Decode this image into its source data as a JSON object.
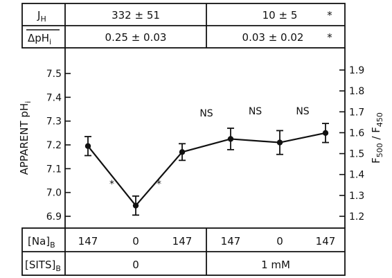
{
  "top_table": {
    "row1": {
      "label": "J_H",
      "label_main": "J",
      "label_sub": "H",
      "ctrl": "332 ± 51",
      "sits": "10 ± 5",
      "sig": "*"
    },
    "row2": {
      "label": "ΔpH_i",
      "label_main": "ΔpH",
      "label_sub": "i",
      "ctrl": "0.25 ± 0.03",
      "sits": "0.03 ± 0.02",
      "sig": "*"
    }
  },
  "bottom_table": {
    "row1": {
      "label": "[Na]_B",
      "label_main": "[Na]",
      "label_sub": "B",
      "values": [
        "147",
        "0",
        "147",
        "147",
        "0",
        "147"
      ]
    },
    "row2": {
      "label": "[SITS]_B",
      "label_main": "[SITS]",
      "label_sub": "B",
      "ctrl": "0",
      "sits": "1 mM"
    }
  },
  "chart_data": {
    "type": "line",
    "ylabel": "APPARENT pH",
    "ylabel_sub": "i",
    "ylabel_right": "F500 / F450",
    "ylabel_right_parts": [
      "F",
      "500",
      " / F",
      "450"
    ],
    "ylim": [
      6.85,
      7.55
    ],
    "yticks": [
      "6.9",
      "7.0",
      "7.1",
      "7.2",
      "7.3",
      "7.4",
      "7.5"
    ],
    "ylim_right": [
      1.15,
      1.95
    ],
    "yticks_right": [
      "1.2",
      "1.3",
      "1.4",
      "1.5",
      "1.6",
      "1.7",
      "1.8",
      "1.9"
    ],
    "series": [
      {
        "values": [
          7.195,
          6.945,
          7.17,
          7.225,
          7.21,
          7.25
        ],
        "errors": [
          0.04,
          0.04,
          0.035,
          0.045,
          0.05,
          0.04
        ]
      }
    ],
    "annotations": [
      {
        "between": [
          0,
          1
        ],
        "text": "*"
      },
      {
        "between": [
          1,
          2
        ],
        "text": "*"
      },
      {
        "between": [
          2,
          3
        ],
        "text": "NS"
      },
      {
        "between": [
          3,
          4
        ],
        "text": "NS"
      },
      {
        "between": [
          4,
          5
        ],
        "text": "NS"
      }
    ],
    "grid": false
  }
}
